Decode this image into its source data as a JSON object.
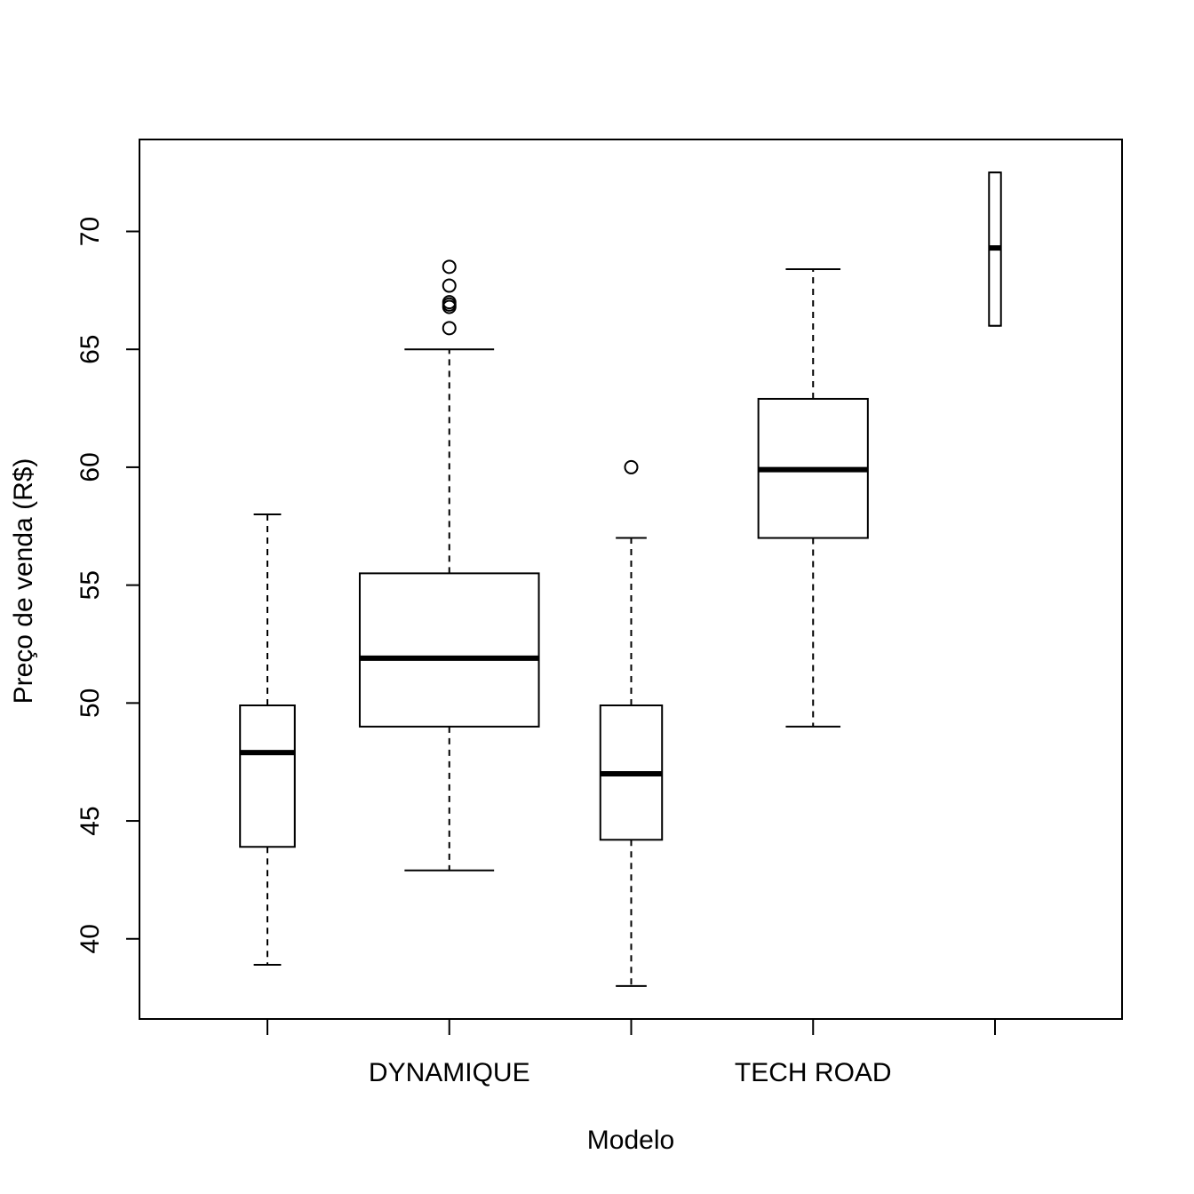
{
  "chart_data": {
    "type": "boxplot",
    "xlabel": "Modelo",
    "ylabel": "Preço de venda (R$)",
    "ylim": [
      36.6,
      73.9
    ],
    "y_ticks": [
      40,
      45,
      50,
      55,
      60,
      65,
      70
    ],
    "x_tick_labels": [
      "",
      "DYNAMIQUE",
      "",
      "TECH ROAD",
      ""
    ],
    "grid": false,
    "legend": "none",
    "boxes": [
      {
        "label": "",
        "relative_width": 0.55,
        "whisker_low": 38.9,
        "q1": 43.9,
        "median": 47.9,
        "q3": 49.9,
        "whisker_high": 58.0,
        "outliers": []
      },
      {
        "label": "DYNAMIQUE",
        "relative_width": 1.8,
        "whisker_low": 42.9,
        "q1": 49.0,
        "median": 51.9,
        "q3": 55.5,
        "whisker_high": 65.0,
        "outliers": [
          65.9,
          66.8,
          66.9,
          67.0,
          67.7,
          68.5
        ]
      },
      {
        "label": "",
        "relative_width": 0.62,
        "whisker_low": 38.0,
        "q1": 44.2,
        "median": 47.0,
        "q3": 49.9,
        "whisker_high": 57.0,
        "outliers": [
          60.0
        ]
      },
      {
        "label": "TECH ROAD",
        "relative_width": 1.1,
        "whisker_low": 49.0,
        "q1": 57.0,
        "median": 59.9,
        "q3": 62.9,
        "whisker_high": 68.4,
        "outliers": []
      },
      {
        "label": "",
        "relative_width": 0.12,
        "whisker_low": 66.0,
        "q1": 66.0,
        "median": 69.3,
        "q3": 72.5,
        "whisker_high": 72.5,
        "outliers": []
      }
    ]
  }
}
